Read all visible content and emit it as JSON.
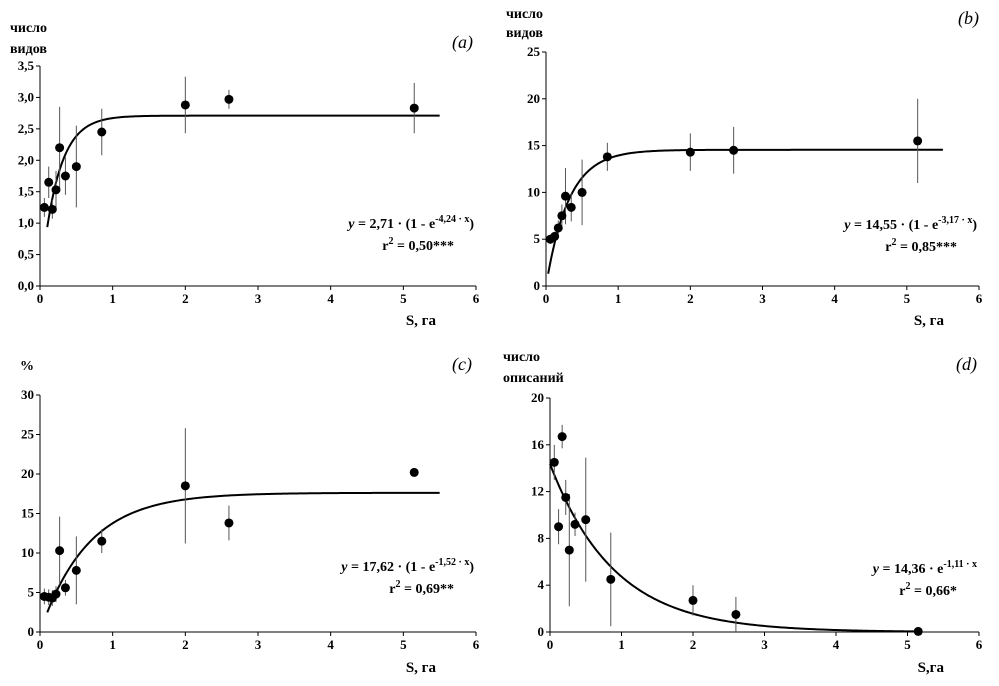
{
  "chart_data": [
    {
      "type": "scatter",
      "panel_label": "(a)",
      "ylabel_lines": [
        "число",
        "видов"
      ],
      "xlabel": "S, га",
      "xlim": [
        0,
        6
      ],
      "ylim": [
        0,
        3.5
      ],
      "xticks": [
        "0",
        "1",
        "2",
        "3",
        "4",
        "5",
        "6"
      ],
      "yticks": [
        "0,0",
        "0,5",
        "1,0",
        "1,5",
        "2,0",
        "2,5",
        "3,0",
        "3,5"
      ],
      "points": [
        {
          "x": 0.06,
          "y": 1.25,
          "err": 0.15
        },
        {
          "x": 0.12,
          "y": 1.65,
          "err": 0.25
        },
        {
          "x": 0.17,
          "y": 1.22,
          "err": 0.15
        },
        {
          "x": 0.22,
          "y": 1.53,
          "err": 0.3
        },
        {
          "x": 0.27,
          "y": 2.2,
          "err": 0.65
        },
        {
          "x": 0.35,
          "y": 1.75,
          "err": 0.3
        },
        {
          "x": 0.5,
          "y": 1.9,
          "err": 0.65
        },
        {
          "x": 0.85,
          "y": 2.45,
          "err": 0.37
        },
        {
          "x": 2.0,
          "y": 2.88,
          "err": 0.45
        },
        {
          "x": 2.6,
          "y": 2.97,
          "err": 0.15
        },
        {
          "x": 5.15,
          "y": 2.83,
          "err": 0.4
        }
      ],
      "fit": {
        "model": "saturation",
        "a": 2.71,
        "b": 4.24,
        "x_start": 0.1,
        "x_end": 5.5
      },
      "equation": {
        "prefix": "y",
        "main": " = 2,71 · (1 - e",
        "exponent": "-4,24 · x",
        "suffix": ")"
      },
      "r2": {
        "label": "r",
        "power": "2",
        "value": " = 0,50***"
      }
    },
    {
      "type": "scatter",
      "panel_label": "(b)",
      "ylabel_lines": [
        "число",
        "видов"
      ],
      "xlabel": "S, га",
      "xlim": [
        0,
        6
      ],
      "ylim": [
        0,
        25
      ],
      "xticks": [
        "0",
        "1",
        "2",
        "3",
        "4",
        "5",
        "6"
      ],
      "yticks": [
        "0",
        "5",
        "10",
        "15",
        "20",
        "25"
      ],
      "points": [
        {
          "x": 0.06,
          "y": 5.0,
          "err": 0.5
        },
        {
          "x": 0.12,
          "y": 5.3,
          "err": 0.5
        },
        {
          "x": 0.17,
          "y": 6.2,
          "err": 0.8
        },
        {
          "x": 0.22,
          "y": 7.5,
          "err": 1.2
        },
        {
          "x": 0.27,
          "y": 9.6,
          "err": 3.0
        },
        {
          "x": 0.35,
          "y": 8.4,
          "err": 1.5
        },
        {
          "x": 0.5,
          "y": 10.0,
          "err": 3.5
        },
        {
          "x": 0.85,
          "y": 13.8,
          "err": 1.5
        },
        {
          "x": 2.0,
          "y": 14.3,
          "err": 2.0
        },
        {
          "x": 2.6,
          "y": 14.5,
          "err": 2.5
        },
        {
          "x": 5.15,
          "y": 15.5,
          "err": 4.5
        }
      ],
      "fit": {
        "model": "saturation",
        "a": 14.55,
        "b": 3.17,
        "x_start": 0.03,
        "x_end": 5.5
      },
      "equation": {
        "prefix": "y",
        "main": " = 14,55 · (1 - e",
        "exponent": "-3,17 · x",
        "suffix": ")"
      },
      "r2": {
        "label": "r",
        "power": "2",
        "value": " = 0,85***"
      }
    },
    {
      "type": "scatter",
      "panel_label": "(c)",
      "ylabel_lines": [
        "%"
      ],
      "xlabel": "S, га",
      "xlim": [
        0,
        6
      ],
      "ylim": [
        0,
        30
      ],
      "xticks": [
        "0",
        "1",
        "2",
        "3",
        "4",
        "5",
        "6"
      ],
      "yticks": [
        "0",
        "5",
        "10",
        "15",
        "20",
        "25",
        "30"
      ],
      "points": [
        {
          "x": 0.06,
          "y": 4.5,
          "err": 1.0
        },
        {
          "x": 0.12,
          "y": 4.4,
          "err": 1.0
        },
        {
          "x": 0.17,
          "y": 4.3,
          "err": 1.0
        },
        {
          "x": 0.22,
          "y": 4.8,
          "err": 1.0
        },
        {
          "x": 0.27,
          "y": 10.3,
          "err": 4.3
        },
        {
          "x": 0.35,
          "y": 5.6,
          "err": 1.0
        },
        {
          "x": 0.5,
          "y": 7.8,
          "err": 4.3
        },
        {
          "x": 0.85,
          "y": 11.5,
          "err": 1.5
        },
        {
          "x": 2.0,
          "y": 18.5,
          "err": 7.3
        },
        {
          "x": 2.6,
          "y": 13.8,
          "err": 2.2
        },
        {
          "x": 5.15,
          "y": 20.2,
          "err": 0.5
        }
      ],
      "fit": {
        "model": "saturation",
        "a": 17.62,
        "b": 1.52,
        "x_start": 0.1,
        "x_end": 5.5
      },
      "equation": {
        "prefix": "y",
        "main": " = 17,62 · (1 - e",
        "exponent": "-1,52 · x",
        "suffix": ")"
      },
      "r2": {
        "label": "r",
        "power": "2",
        "value": " = 0,69**"
      }
    },
    {
      "type": "scatter",
      "panel_label": "(d)",
      "ylabel_lines": [
        "число",
        "описаний"
      ],
      "xlabel": "S,га",
      "xlim": [
        0,
        6
      ],
      "ylim": [
        0,
        20
      ],
      "xticks": [
        "0",
        "1",
        "2",
        "3",
        "4",
        "5",
        "6"
      ],
      "yticks": [
        "0",
        "4",
        "8",
        "12",
        "16",
        "20"
      ],
      "points": [
        {
          "x": 0.06,
          "y": 14.5,
          "err": 1.5
        },
        {
          "x": 0.12,
          "y": 9.0,
          "err": 1.5
        },
        {
          "x": 0.17,
          "y": 16.7,
          "err": 1.0
        },
        {
          "x": 0.22,
          "y": 11.5,
          "err": 1.5
        },
        {
          "x": 0.27,
          "y": 7.0,
          "err": 4.8
        },
        {
          "x": 0.35,
          "y": 9.2,
          "err": 1.0
        },
        {
          "x": 0.5,
          "y": 9.6,
          "err": 5.3
        },
        {
          "x": 0.85,
          "y": 4.5,
          "err": 4.0
        },
        {
          "x": 2.0,
          "y": 2.7,
          "err": 1.3
        },
        {
          "x": 2.6,
          "y": 1.5,
          "err": 1.5
        },
        {
          "x": 5.15,
          "y": 0.05,
          "err": 0.1
        }
      ],
      "fit": {
        "model": "decay",
        "a": 14.36,
        "b": 1.11,
        "x_start": 0.0,
        "x_end": 5.2
      },
      "equation": {
        "prefix": "y",
        "main": " = 14,36 · e",
        "exponent": "-1,11 · x",
        "suffix": ""
      },
      "r2": {
        "label": "r",
        "power": "2",
        "value": " = 0,66*"
      }
    }
  ]
}
